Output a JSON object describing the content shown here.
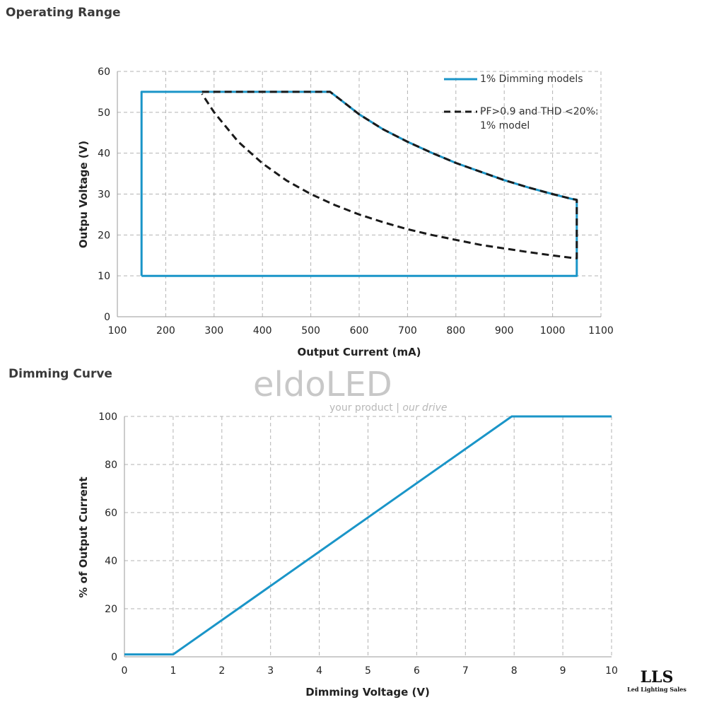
{
  "sections": {
    "operating_range_title": "Operating Range",
    "dimming_curve_title": "Dimming Curve"
  },
  "watermark": {
    "brand": "eldoLED",
    "tagline_plain": "your product | ",
    "tagline_italic": "our drive"
  },
  "logo": {
    "text": "LLS",
    "subtitle": "Led Lighting Sales"
  },
  "colors": {
    "blue": "#1a95c8",
    "dashed": "#1a1a1a",
    "grid": "#b3b3b3"
  },
  "chart_data": [
    {
      "type": "line",
      "title": "Operating Range",
      "xlabel": "Output Current (mA)",
      "ylabel": "Outpu Voltage (V)",
      "xlim": [
        100,
        1100
      ],
      "ylim": [
        0,
        60
      ],
      "xticks": [
        100,
        200,
        300,
        400,
        500,
        600,
        700,
        800,
        900,
        1000,
        1100
      ],
      "yticks": [
        0,
        10,
        20,
        30,
        40,
        50,
        60
      ],
      "grid": true,
      "legend_position": "top-right",
      "series": [
        {
          "name": "1% Dimming models",
          "style": "solid",
          "x": [
            150,
            150,
            540,
            560,
            600,
            650,
            700,
            750,
            800,
            850,
            900,
            950,
            1000,
            1040,
            1050,
            1050,
            150
          ],
          "y": [
            10,
            55,
            55,
            53.2,
            49.5,
            45.8,
            42.8,
            40.1,
            37.6,
            35.5,
            33.4,
            31.6,
            30.0,
            28.8,
            28.6,
            10,
            10
          ]
        },
        {
          "name": "PF>0.9 and THD <20%: 1% model",
          "legend_lines": [
            "PF>0.9 and THD <20%:",
            "1% model"
          ],
          "style": "dashed",
          "x": [
            275,
            540,
            560,
            600,
            650,
            700,
            750,
            800,
            850,
            900,
            950,
            1000,
            1040,
            1050,
            1050,
            1040,
            1000,
            950,
            900,
            850,
            800,
            750,
            700,
            650,
            600,
            550,
            500,
            450,
            400,
            350,
            300,
            275
          ],
          "y": [
            55,
            55,
            53.2,
            49.5,
            45.8,
            42.8,
            40.1,
            37.6,
            35.5,
            33.4,
            31.6,
            30.0,
            28.8,
            28.6,
            14.3,
            14.4,
            15.0,
            15.8,
            16.7,
            17.6,
            18.8,
            20.0,
            21.4,
            23.1,
            25.0,
            27.3,
            30.0,
            33.3,
            37.5,
            42.8,
            50.0,
            54.5
          ]
        }
      ]
    },
    {
      "type": "line",
      "title": "Dimming Curve",
      "xlabel": "Dimming Voltage (V)",
      "ylabel": "% of Output Current",
      "xlim": [
        0,
        10
      ],
      "ylim": [
        0,
        100
      ],
      "xticks": [
        0,
        1,
        2,
        3,
        4,
        5,
        6,
        7,
        8,
        9,
        10
      ],
      "yticks": [
        0,
        20,
        40,
        60,
        80,
        100
      ],
      "grid": true,
      "series": [
        {
          "name": "Dimming curve",
          "style": "solid",
          "x": [
            0,
            1,
            7.95,
            10
          ],
          "y": [
            1,
            1,
            100,
            100
          ]
        }
      ]
    }
  ]
}
